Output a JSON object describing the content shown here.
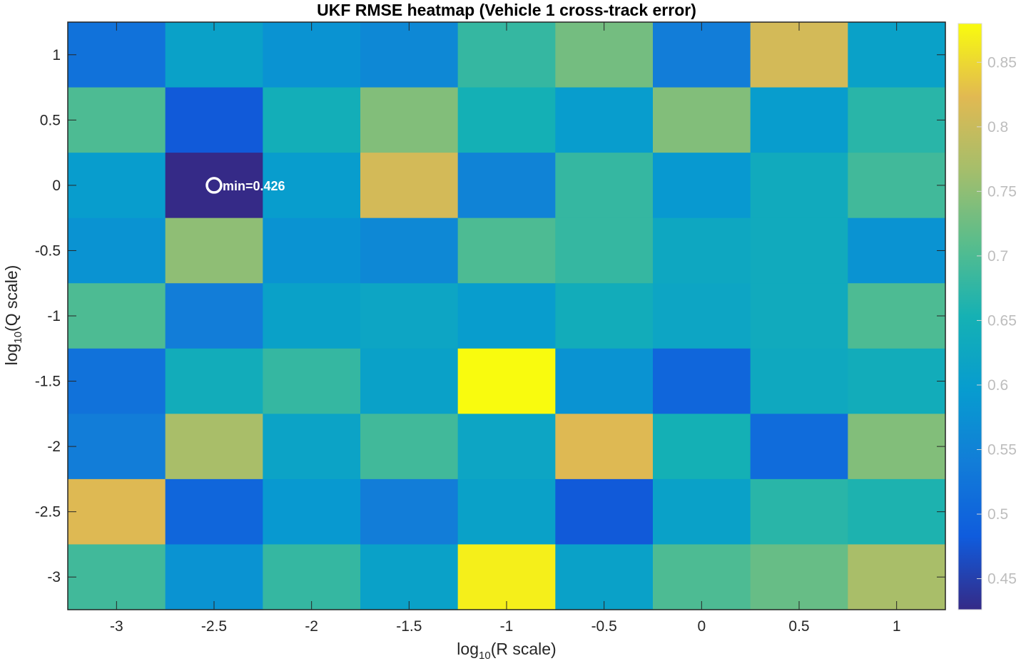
{
  "chart_data": {
    "type": "heatmap",
    "title": "UKF RMSE heatmap (Vehicle 1 cross-track error)",
    "xlabel": {
      "base": "log",
      "sub": "10",
      "rest": "(R  scale)"
    },
    "ylabel": {
      "base": "log",
      "sub": "10",
      "rest": "(Q  scale)"
    },
    "x": [
      -3,
      -2.5,
      -2,
      -1.5,
      -1,
      -0.5,
      0,
      0.5,
      1
    ],
    "y": [
      1,
      0.5,
      0,
      -0.5,
      -1,
      -1.5,
      -2,
      -2.5,
      -3
    ],
    "x_tick_labels": [
      "-3",
      "-2.5",
      "-2",
      "-1.5",
      "-1",
      "-0.5",
      "0",
      "0.5",
      "1"
    ],
    "y_tick_labels": [
      "1",
      "0.5",
      "0",
      "-0.5",
      "-1",
      "-1.5",
      "-2",
      "-2.5",
      "-3"
    ],
    "values": [
      [
        0.52,
        0.61,
        0.58,
        0.56,
        0.68,
        0.73,
        0.54,
        0.81,
        0.61
      ],
      [
        0.7,
        0.48,
        0.645,
        0.74,
        0.65,
        0.6,
        0.74,
        0.6,
        0.67
      ],
      [
        0.6,
        0.426,
        0.6,
        0.81,
        0.55,
        0.68,
        0.59,
        0.635,
        0.69
      ],
      [
        0.58,
        0.75,
        0.58,
        0.56,
        0.7,
        0.68,
        0.625,
        0.635,
        0.58
      ],
      [
        0.7,
        0.54,
        0.61,
        0.62,
        0.6,
        0.64,
        0.62,
        0.635,
        0.7
      ],
      [
        0.52,
        0.64,
        0.68,
        0.61,
        0.88,
        0.58,
        0.5,
        0.63,
        0.64
      ],
      [
        0.54,
        0.77,
        0.615,
        0.69,
        0.62,
        0.82,
        0.65,
        0.51,
        0.74
      ],
      [
        0.82,
        0.5,
        0.59,
        0.54,
        0.61,
        0.48,
        0.61,
        0.67,
        0.66
      ],
      [
        0.69,
        0.58,
        0.68,
        0.61,
        0.87,
        0.61,
        0.7,
        0.72,
        0.77
      ]
    ],
    "clim": [
      0.426,
      0.88
    ],
    "colorbar": {
      "colormap": "parula",
      "ticks": [
        0.45,
        0.5,
        0.55,
        0.6,
        0.65,
        0.7,
        0.75,
        0.8,
        0.85
      ],
      "tick_labels": [
        "0.45",
        "0.5",
        "0.55",
        "0.6",
        "0.65",
        "0.7",
        "0.75",
        "0.8",
        "0.85"
      ]
    },
    "marker": {
      "x": -2.5,
      "y": 0,
      "label": "min=0.426",
      "color": "#ffffff"
    },
    "grid": false
  }
}
